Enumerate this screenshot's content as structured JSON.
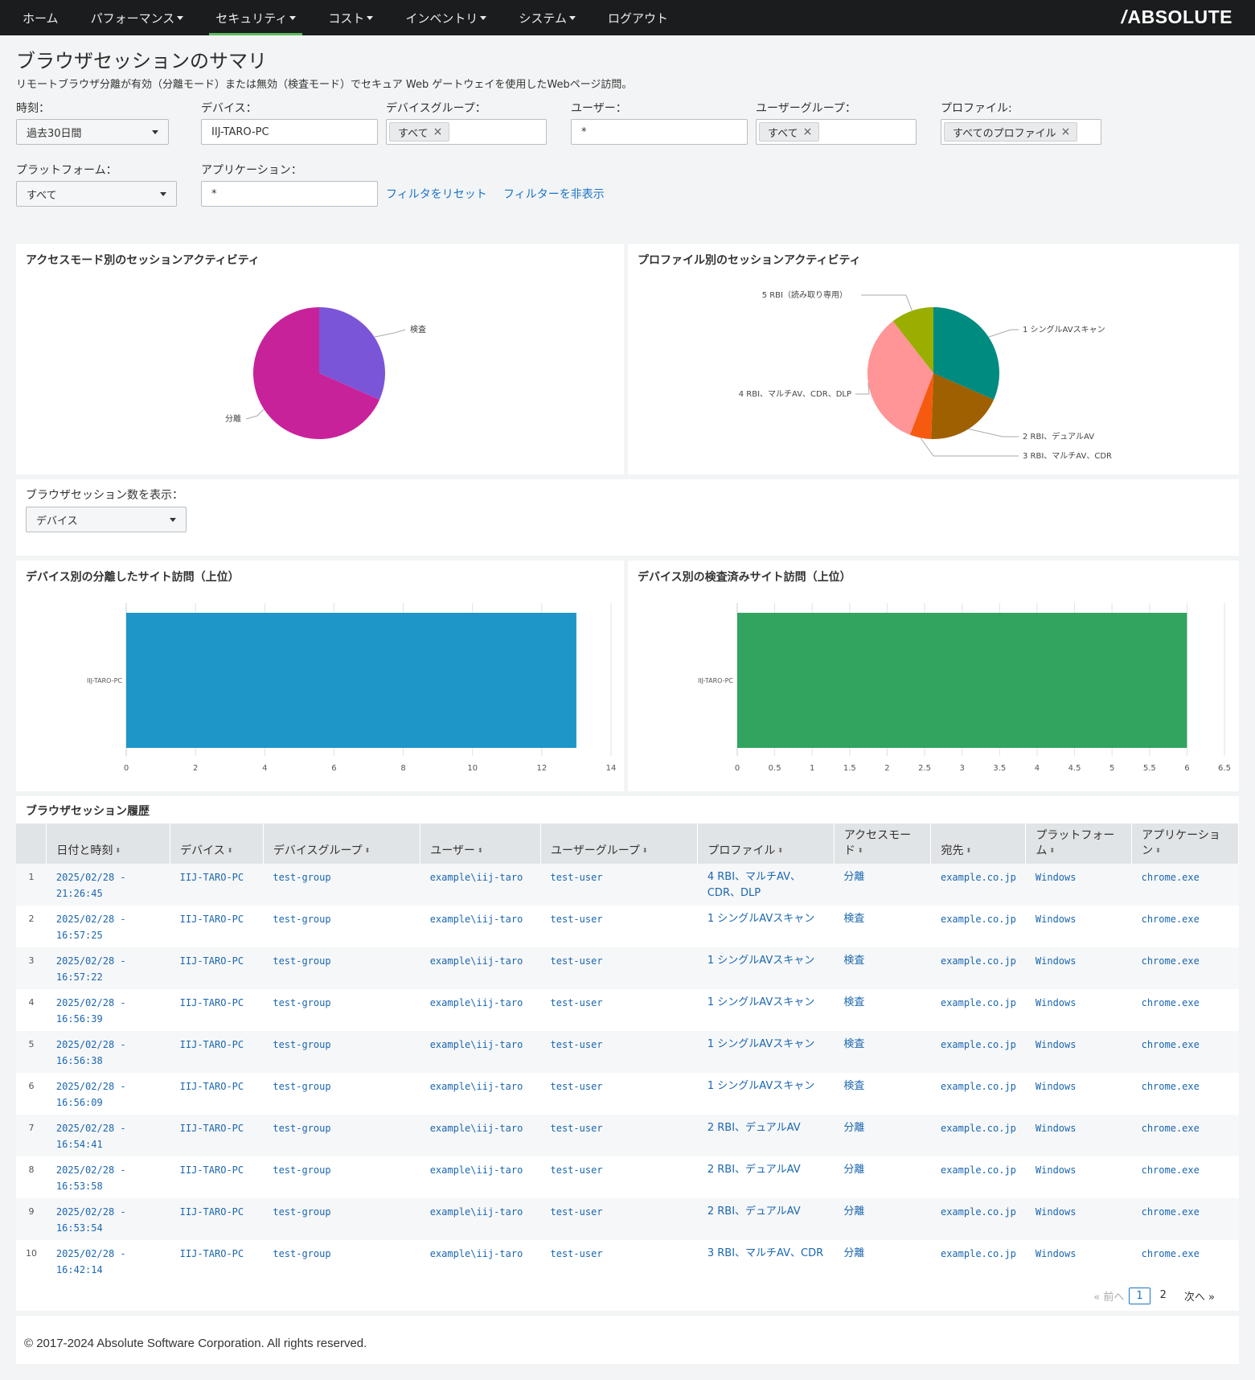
{
  "nav": {
    "items": [
      {
        "label": "ホーム",
        "dropdown": false,
        "active": false
      },
      {
        "label": "パフォーマンス",
        "dropdown": true,
        "active": false
      },
      {
        "label": "セキュリティ",
        "dropdown": true,
        "active": true
      },
      {
        "label": "コスト",
        "dropdown": true,
        "active": false
      },
      {
        "label": "インベントリ",
        "dropdown": true,
        "active": false
      },
      {
        "label": "システム",
        "dropdown": true,
        "active": false
      },
      {
        "label": "ログアウト",
        "dropdown": false,
        "active": false
      }
    ],
    "brand": "ABSOLUTE",
    "brand_slash": "/"
  },
  "page": {
    "title": "ブラウザセッションのサマリ",
    "description": "リモートブラウザ分離が有効（分離モード）または無効（検査モード）でセキュア Web ゲートウェイを使用したWebページ訪問。"
  },
  "filters": {
    "time": {
      "label": "時刻：",
      "value": "過去30日間"
    },
    "device": {
      "label": "デバイス：",
      "value": "IIJ-TARO-PC"
    },
    "device_group": {
      "label": "デバイスグループ：",
      "token": "すべて"
    },
    "user": {
      "label": "ユーザー：",
      "value": "*"
    },
    "user_group": {
      "label": "ユーザーグループ：",
      "token": "すべて"
    },
    "profile": {
      "label": "プロファイル:",
      "token": "すべてのプロファイル"
    },
    "platform": {
      "label": "プラットフォーム：",
      "value": "すべて"
    },
    "application": {
      "label": "アプリケーション：",
      "value": "*"
    },
    "reset_link": "フィルタをリセット",
    "hide_link": "フィルターを非表示",
    "token_remove": "×"
  },
  "show_count": {
    "label": "ブラウザセッション数を表示：",
    "value": "デバイス"
  },
  "panels": {
    "access_mode_title": "アクセスモード別のセッションアクティビティ",
    "profile_title": "プロファイル別のセッションアクティビティ",
    "isolated_title": "デバイス別の分離したサイト訪問（上位）",
    "inspected_title": "デバイス別の検査済みサイト訪問（上位）",
    "history_title": "ブラウザセッション履歴"
  },
  "chart_data": [
    {
      "type": "pie",
      "title": "アクセスモード別のセッションアクティビティ",
      "slices": [
        {
          "label": "検査",
          "value": 6,
          "color": "#7b55d8"
        },
        {
          "label": "分離",
          "value": 13,
          "color": "#c8229b"
        }
      ]
    },
    {
      "type": "pie",
      "title": "プロファイル別のセッションアクティビティ",
      "slices": [
        {
          "label": "1 シングルAVスキャン",
          "value": 6,
          "color": "#008b80"
        },
        {
          "label": "2 RBI、デュアルAV",
          "value": 3.6,
          "color": "#9e6000"
        },
        {
          "label": "3 RBI、マルチAV、CDR",
          "value": 1,
          "color": "#f65a0f"
        },
        {
          "label": "4 RBI、マルチAV、CDR、DLP",
          "value": 6.4,
          "color": "#ff9597"
        },
        {
          "label": "5 RBI（読み取り専用）",
          "value": 2,
          "color": "#9aae00"
        }
      ]
    },
    {
      "type": "bar",
      "orientation": "horizontal",
      "title": "デバイス別の分離したサイト訪問（上位）",
      "categories": [
        "IIJ-TARO-PC"
      ],
      "values": [
        13
      ],
      "xlim": [
        0,
        14
      ],
      "xticks": [
        0,
        2,
        4,
        6,
        8,
        10,
        12,
        14
      ],
      "color": "#1e96c8"
    },
    {
      "type": "bar",
      "orientation": "horizontal",
      "title": "デバイス別の検査済みサイト訪問（上位）",
      "categories": [
        "IIJ-TARO-PC"
      ],
      "values": [
        6
      ],
      "xlim": [
        0,
        6.5
      ],
      "xticks": [
        0,
        0.5,
        1,
        1.5,
        2,
        2.5,
        3,
        3.5,
        4,
        4.5,
        5,
        5.5,
        6,
        6.5
      ],
      "color": "#32a460"
    }
  ],
  "table": {
    "columns": [
      "",
      "日付と時刻",
      "デバイス",
      "デバイスグループ",
      "ユーザー",
      "ユーザーグループ",
      "プロファイル",
      "アクセスモード",
      "宛先",
      "プラットフォーム",
      "アプリケーション"
    ],
    "rows": [
      {
        "n": "1",
        "dt1": "2025/02/28 -",
        "dt2": "21:26:45",
        "device": "IIJ-TARO-PC",
        "group": "test-group",
        "user": "example\\iij-taro",
        "ugroup": "test-user",
        "profile": "4 RBI、マルチAV、CDR、DLP",
        "mode": "分離",
        "dest": "example.co.jp",
        "platform": "Windows",
        "app": "chrome.exe"
      },
      {
        "n": "2",
        "dt1": "2025/02/28 -",
        "dt2": "16:57:25",
        "device": "IIJ-TARO-PC",
        "group": "test-group",
        "user": "example\\iij-taro",
        "ugroup": "test-user",
        "profile": "1 シングルAVスキャン",
        "mode": "検査",
        "dest": "example.co.jp",
        "platform": "Windows",
        "app": "chrome.exe"
      },
      {
        "n": "3",
        "dt1": "2025/02/28 -",
        "dt2": "16:57:22",
        "device": "IIJ-TARO-PC",
        "group": "test-group",
        "user": "example\\iij-taro",
        "ugroup": "test-user",
        "profile": "1 シングルAVスキャン",
        "mode": "検査",
        "dest": "example.co.jp",
        "platform": "Windows",
        "app": "chrome.exe"
      },
      {
        "n": "4",
        "dt1": "2025/02/28 -",
        "dt2": "16:56:39",
        "device": "IIJ-TARO-PC",
        "group": "test-group",
        "user": "example\\iij-taro",
        "ugroup": "test-user",
        "profile": "1 シングルAVスキャン",
        "mode": "検査",
        "dest": "example.co.jp",
        "platform": "Windows",
        "app": "chrome.exe"
      },
      {
        "n": "5",
        "dt1": "2025/02/28 -",
        "dt2": "16:56:38",
        "device": "IIJ-TARO-PC",
        "group": "test-group",
        "user": "example\\iij-taro",
        "ugroup": "test-user",
        "profile": "1 シングルAVスキャン",
        "mode": "検査",
        "dest": "example.co.jp",
        "platform": "Windows",
        "app": "chrome.exe"
      },
      {
        "n": "6",
        "dt1": "2025/02/28 -",
        "dt2": "16:56:09",
        "device": "IIJ-TARO-PC",
        "group": "test-group",
        "user": "example\\iij-taro",
        "ugroup": "test-user",
        "profile": "1 シングルAVスキャン",
        "mode": "検査",
        "dest": "example.co.jp",
        "platform": "Windows",
        "app": "chrome.exe"
      },
      {
        "n": "7",
        "dt1": "2025/02/28 -",
        "dt2": "16:54:41",
        "device": "IIJ-TARO-PC",
        "group": "test-group",
        "user": "example\\iij-taro",
        "ugroup": "test-user",
        "profile": "2 RBI、デュアルAV",
        "mode": "分離",
        "dest": "example.co.jp",
        "platform": "Windows",
        "app": "chrome.exe"
      },
      {
        "n": "8",
        "dt1": "2025/02/28 -",
        "dt2": "16:53:58",
        "device": "IIJ-TARO-PC",
        "group": "test-group",
        "user": "example\\iij-taro",
        "ugroup": "test-user",
        "profile": "2 RBI、デュアルAV",
        "mode": "分離",
        "dest": "example.co.jp",
        "platform": "Windows",
        "app": "chrome.exe"
      },
      {
        "n": "9",
        "dt1": "2025/02/28 -",
        "dt2": "16:53:54",
        "device": "IIJ-TARO-PC",
        "group": "test-group",
        "user": "example\\iij-taro",
        "ugroup": "test-user",
        "profile": "2 RBI、デュアルAV",
        "mode": "分離",
        "dest": "example.co.jp",
        "platform": "Windows",
        "app": "chrome.exe"
      },
      {
        "n": "10",
        "dt1": "2025/02/28 -",
        "dt2": "16:42:14",
        "device": "IIJ-TARO-PC",
        "group": "test-group",
        "user": "example\\iij-taro",
        "ugroup": "test-user",
        "profile": "3 RBI、マルチAV、CDR",
        "mode": "分離",
        "dest": "example.co.jp",
        "platform": "Windows",
        "app": "chrome.exe"
      }
    ],
    "sort_icon": "⬍"
  },
  "pager": {
    "prev": "« 前へ",
    "pages": [
      "1",
      "2"
    ],
    "current": "1",
    "next": "次へ »"
  },
  "footer": {
    "copyright": "© 2017-2024 Absolute Software Corporation. All rights reserved."
  }
}
